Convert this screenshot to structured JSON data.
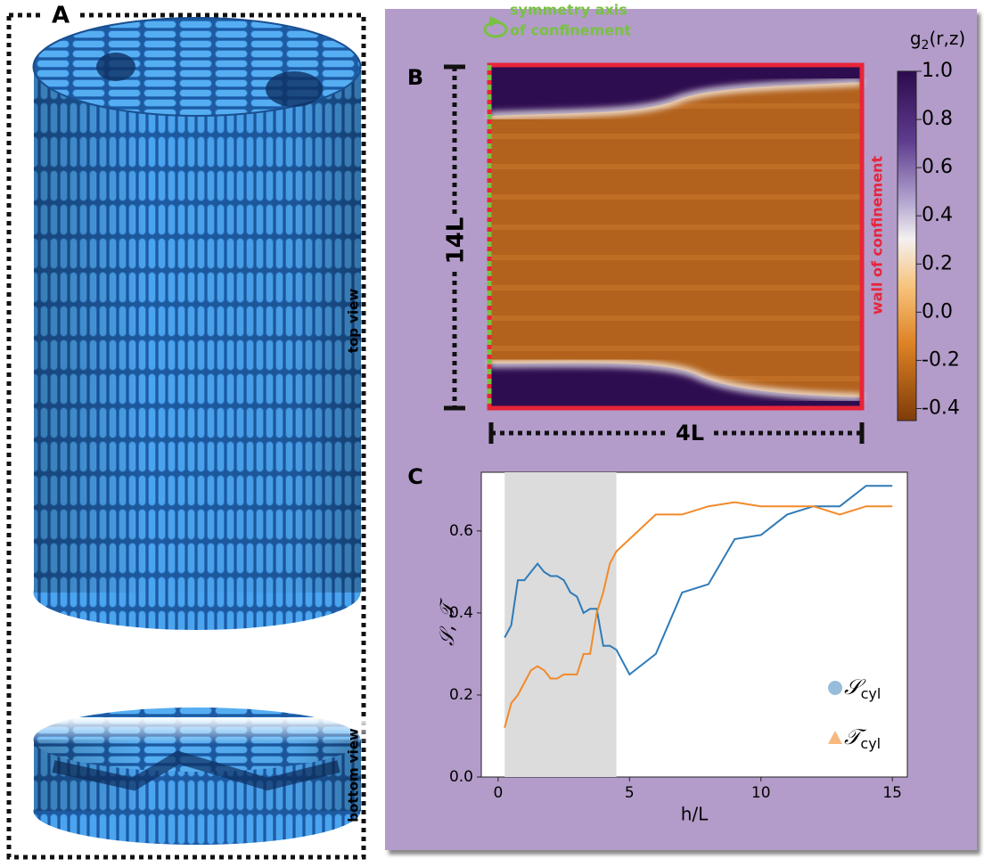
{
  "panel_a": {
    "label": "A",
    "top_view": "top view",
    "bottom_view": "bottom view"
  },
  "panel_b": {
    "label": "B",
    "symmetry_line1": "symmetry axis",
    "symmetry_line2": "of confinement",
    "wall_label": "wall of confinement",
    "height_label": "14L",
    "width_label": "4L",
    "colorbar": {
      "title_base": "g",
      "title_sub": "2",
      "title_rest": "(r,z)",
      "clim": [
        -0.45,
        1.0
      ],
      "ticks": [
        {
          "value": 1,
          "label": "1.0"
        },
        0.8,
        0.6,
        0.4,
        0.2,
        {
          "value": 0,
          "label": "0.0"
        },
        -0.2,
        -0.4
      ]
    }
  },
  "chart_data": {
    "type": "line",
    "panel_label": "C",
    "x_label": "h/L",
    "y_label": "𝒮, 𝒯",
    "x": [
      0.25,
      0.5,
      0.75,
      1,
      1.25,
      1.5,
      1.75,
      2,
      2.25,
      2.5,
      2.75,
      3,
      3.25,
      3.5,
      3.75,
      4,
      4.25,
      4.5,
      5,
      6,
      7,
      8,
      9,
      10,
      11,
      12,
      13,
      14,
      15
    ],
    "series": [
      {
        "name": "𝒮",
        "name_sub": "cyl",
        "color": "#2f7bb8",
        "marker": "circle",
        "values": [
          0.34,
          0.37,
          0.48,
          0.48,
          0.5,
          0.52,
          0.5,
          0.49,
          0.49,
          0.48,
          0.45,
          0.44,
          0.4,
          0.41,
          0.41,
          0.32,
          0.32,
          0.31,
          0.25,
          0.3,
          0.45,
          0.47,
          0.58,
          0.59,
          0.64,
          0.66,
          0.66,
          0.71,
          0.71
        ]
      },
      {
        "name": "𝒯",
        "name_sub": "cyl",
        "color": "#f28a2a",
        "marker": "triangle",
        "values": [
          0.12,
          0.18,
          0.2,
          0.23,
          0.26,
          0.27,
          0.26,
          0.24,
          0.24,
          0.25,
          0.25,
          0.25,
          0.3,
          0.3,
          0.4,
          0.45,
          0.52,
          0.55,
          0.58,
          0.64,
          0.64,
          0.66,
          0.67,
          0.66,
          0.66,
          0.66,
          0.64,
          0.66,
          0.66
        ]
      }
    ],
    "shaded_span": [
      0.25,
      4.5
    ],
    "xlim": [
      -0.64,
      15.57
    ],
    "xticks": [
      0,
      5,
      10,
      15
    ],
    "ylim": [
      0,
      0.743
    ],
    "yticks": [
      {
        "value": 0,
        "label": "0.0"
      },
      0.2,
      0.4,
      0.6
    ]
  }
}
